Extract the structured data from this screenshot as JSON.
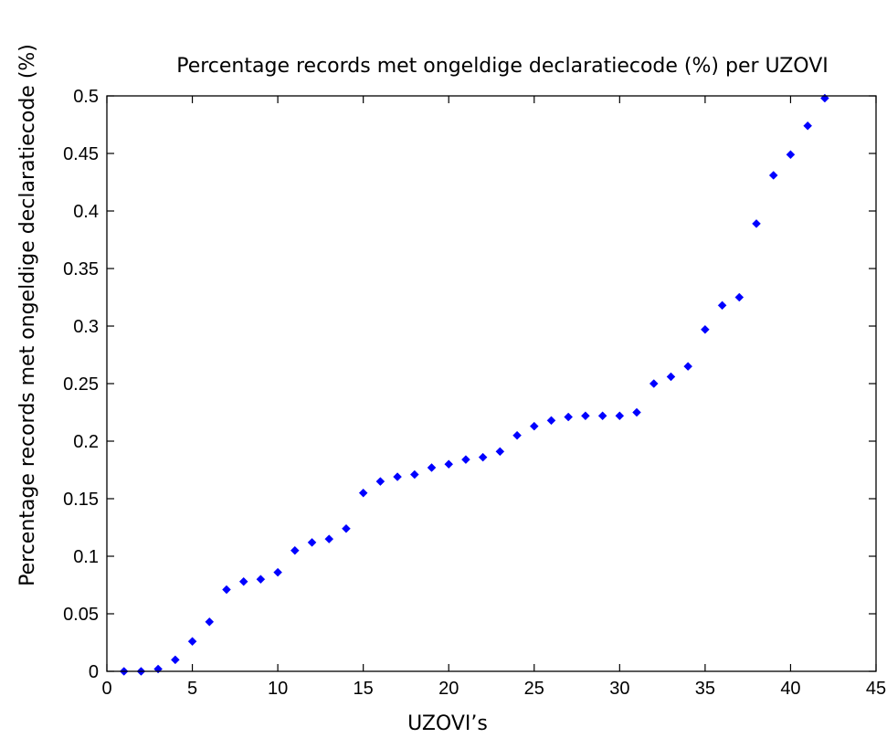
{
  "chart_data": {
    "type": "scatter",
    "title": "Percentage records met ongeldige declaratiecode (%) per UZOVI",
    "xlabel": "UZOVI’s",
    "ylabel": "Percentage records met ongeldige declaratiecode (%)",
    "xlim": [
      0,
      45
    ],
    "ylim": [
      0,
      0.5
    ],
    "xticks": [
      0,
      5,
      10,
      15,
      20,
      25,
      30,
      35,
      40,
      45
    ],
    "xtick_labels": [
      "0",
      "5",
      "10",
      "15",
      "20",
      "25",
      "30",
      "35",
      "40",
      "45"
    ],
    "yticks": [
      0,
      0.05,
      0.1,
      0.15,
      0.2,
      0.25,
      0.3,
      0.35,
      0.4,
      0.45,
      0.5
    ],
    "ytick_labels": [
      "0",
      "0.05",
      "0.1",
      "0.15",
      "0.2",
      "0.25",
      "0.3",
      "0.35",
      "0.4",
      "0.45",
      "0.5"
    ],
    "grid": false,
    "marker_color": "#0000ff",
    "series": [
      {
        "x": [
          1,
          2,
          3,
          4,
          5,
          6,
          7,
          8,
          9,
          10,
          11,
          12,
          13,
          14,
          15,
          16,
          17,
          18,
          19,
          20,
          21,
          22,
          23,
          24,
          25,
          26,
          27,
          28,
          29,
          30,
          31,
          32,
          33,
          34,
          35,
          36,
          37,
          38,
          39,
          40,
          41,
          42
        ],
        "y": [
          0.0,
          0.0,
          0.002,
          0.01,
          0.026,
          0.043,
          0.071,
          0.078,
          0.08,
          0.086,
          0.105,
          0.112,
          0.115,
          0.124,
          0.155,
          0.165,
          0.169,
          0.171,
          0.177,
          0.18,
          0.184,
          0.186,
          0.191,
          0.205,
          0.213,
          0.218,
          0.221,
          0.222,
          0.222,
          0.222,
          0.225,
          0.25,
          0.256,
          0.265,
          0.297,
          0.318,
          0.325,
          0.389,
          0.431,
          0.449,
          0.474,
          0.498
        ]
      }
    ]
  }
}
